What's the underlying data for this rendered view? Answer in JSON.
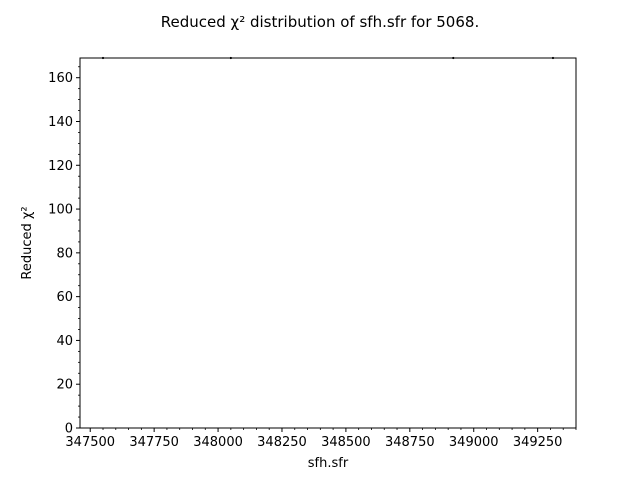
{
  "chart_data": {
    "type": "scatter",
    "title": "Reduced χ² distribution of sfh.sfr for 5068.",
    "xlabel": "sfh.sfr",
    "ylabel": "Reduced χ²",
    "xlim": [
      347460,
      349400
    ],
    "ylim": [
      0,
      169
    ],
    "x_ticks": [
      347500,
      347750,
      348000,
      348250,
      348500,
      348750,
      349000,
      349250
    ],
    "x_tick_labels": [
      "347500",
      "347750",
      "348000",
      "348250",
      "348500",
      "348750",
      "349000",
      "349250"
    ],
    "y_ticks": [
      0,
      20,
      40,
      60,
      80,
      100,
      120,
      140,
      160
    ],
    "y_tick_labels": [
      "0",
      "20",
      "40",
      "60",
      "80",
      "100",
      "120",
      "140",
      "160"
    ],
    "x_minor_step": 50,
    "y_minor_step": 5,
    "grid": false,
    "legend": "none",
    "colors": {
      "points": "#000000",
      "axes": "#000000"
    },
    "series": [
      {
        "x": [
          347550,
          348050,
          348920,
          349310
        ],
        "y": [
          169,
          169,
          169,
          169
        ]
      }
    ]
  }
}
